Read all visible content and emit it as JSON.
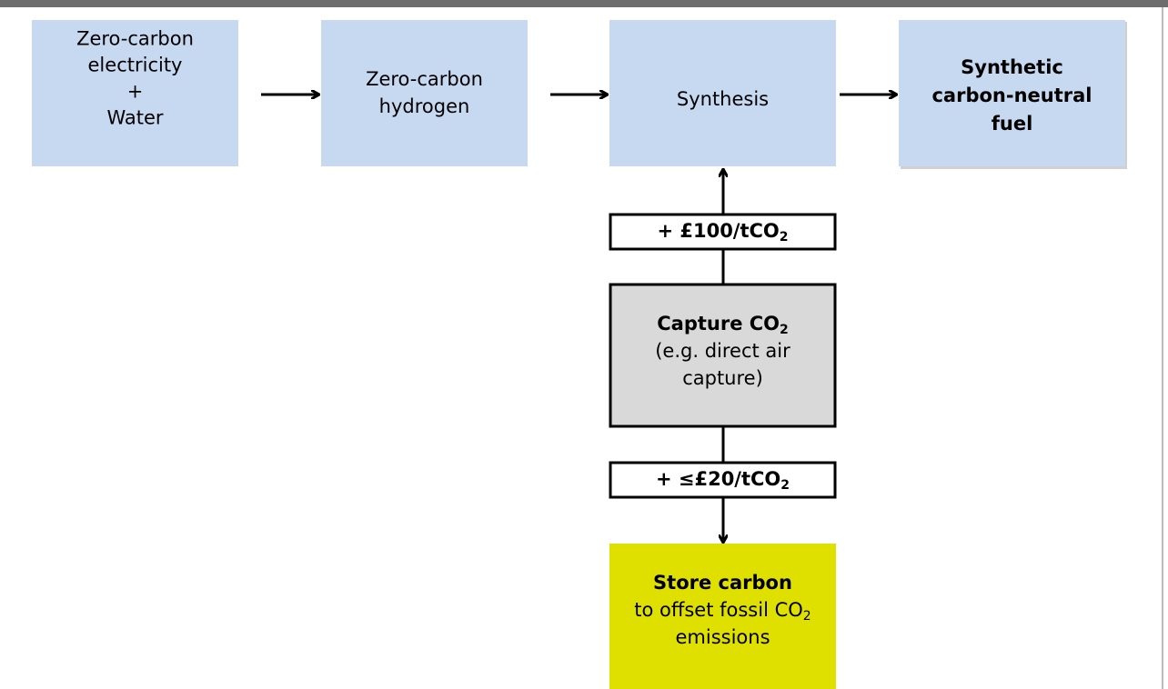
{
  "nodes": [
    {
      "lines": [
        {
          "text": "Zero-carbon"
        },
        {
          "text": "electricity"
        },
        {
          "text": "+"
        },
        {
          "text": "Water"
        }
      ]
    },
    {
      "lines": [
        {
          "text": "Zero-carbon"
        },
        {
          "text": "hydrogen"
        }
      ]
    },
    {
      "lines": [
        {
          "text": "Synthesis"
        }
      ]
    },
    {
      "lines": [
        {
          "text": "Synthetic",
          "bold": true
        },
        {
          "text": "carbon-neutral",
          "bold": true
        },
        {
          "text": "fuel",
          "bold": true
        }
      ]
    },
    {
      "lines": [
        {
          "text": "+ £100/tCO",
          "sub": "2",
          "bold": true
        }
      ]
    },
    {
      "lines": [
        {
          "text": "Capture CO",
          "sub": "2",
          "bold": true
        },
        {
          "text": "(e.g. direct air"
        },
        {
          "text": "capture)"
        }
      ]
    },
    {
      "lines": [
        {
          "text": "+ ≤£20/tCO",
          "sub": "2",
          "bold": true
        }
      ]
    },
    {
      "lines": [
        {
          "text": "Store carbon",
          "bold": true
        },
        {
          "text": "to offset fossil CO",
          "sub": "2"
        },
        {
          "text": "emissions"
        }
      ]
    }
  ]
}
